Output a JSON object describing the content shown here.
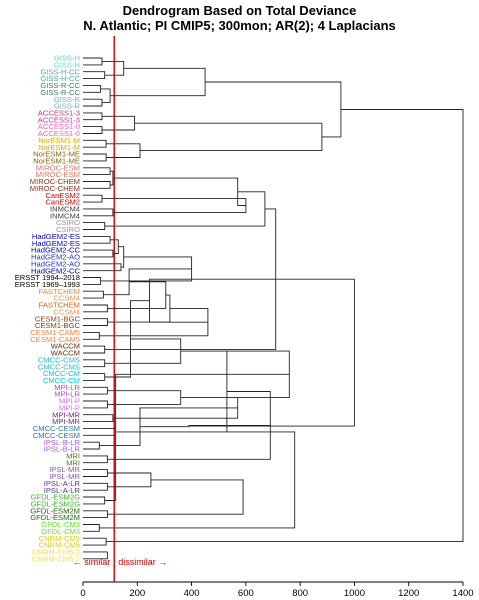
{
  "chart_data": {
    "type": "dendrogram",
    "title": "Dendrogram Based on Total Deviance",
    "subtitle": "N. Atlantic; PI CMIP5; 300mon; AR(2); 4 Laplacians",
    "xlabel": "",
    "ylabel": "",
    "xlim": [
      0,
      1400
    ],
    "xticks": [
      0,
      200,
      400,
      600,
      800,
      1000,
      1200,
      1400
    ],
    "threshold": 115,
    "threshold_color": "#cc0000",
    "annotation_left": "← similar",
    "annotation_right": "dissimilar →",
    "leaves": [
      {
        "label": "GISS-H",
        "color": "#66ddbb"
      },
      {
        "label": "GISS-H",
        "color": "#66ddbb"
      },
      {
        "label": "GISS-H-CC",
        "color": "#55aa99"
      },
      {
        "label": "GISS-H-CC",
        "color": "#55aa99"
      },
      {
        "label": "GISS-R-CC",
        "color": "#447766"
      },
      {
        "label": "GISS-R-CC",
        "color": "#447766"
      },
      {
        "label": "GISS-R",
        "color": "#66bbaa"
      },
      {
        "label": "GISS-R",
        "color": "#66bbaa"
      },
      {
        "label": "ACCESS1-3",
        "color": "#cc3388"
      },
      {
        "label": "ACCESS1-3",
        "color": "#cc3388"
      },
      {
        "label": "ACCESS1-0",
        "color": "#ee66bb"
      },
      {
        "label": "ACCESS1-0",
        "color": "#ee66bb"
      },
      {
        "label": "NorESM1-M",
        "color": "#ddaa00"
      },
      {
        "label": "NorESM1-M",
        "color": "#ddaa00"
      },
      {
        "label": "NorESM1-ME",
        "color": "#886600"
      },
      {
        "label": "NorESM1-ME",
        "color": "#886600"
      },
      {
        "label": "MIROC-ESM",
        "color": "#dd7766"
      },
      {
        "label": "MIROC-ESM",
        "color": "#dd7766"
      },
      {
        "label": "MIROC-CHEM",
        "color": "#883322"
      },
      {
        "label": "MIROC-CHEM",
        "color": "#883322"
      },
      {
        "label": "CanESM2",
        "color": "#dd0000"
      },
      {
        "label": "CanESM2",
        "color": "#dd0000"
      },
      {
        "label": "INMCM4",
        "color": "#444444"
      },
      {
        "label": "INMCM4",
        "color": "#444444"
      },
      {
        "label": "CSIRO",
        "color": "#999999"
      },
      {
        "label": "CSIRO",
        "color": "#999999"
      },
      {
        "label": "HadGEM2-ES",
        "color": "#0000cc"
      },
      {
        "label": "HadGEM2-ES",
        "color": "#0000cc"
      },
      {
        "label": "HadGEM2-CC",
        "color": "#0000aa"
      },
      {
        "label": "HadGEM2-AO",
        "color": "#2233dd"
      },
      {
        "label": "HadGEM2-AO",
        "color": "#2233dd"
      },
      {
        "label": "HadGEM2-CC",
        "color": "#0000aa"
      },
      {
        "label": "ERSST 1994–2018",
        "color": "#000000"
      },
      {
        "label": "ERSST 1969–1993",
        "color": "#000000"
      },
      {
        "label": "FASTCHEM",
        "color": "#ee8833"
      },
      {
        "label": "CCSM4",
        "color": "#ee9955"
      },
      {
        "label": "FASTCHEM",
        "color": "#cc6611"
      },
      {
        "label": "CCSM4",
        "color": "#ee9955"
      },
      {
        "label": "CESM1-BGC",
        "color": "#884411"
      },
      {
        "label": "CESM1-BGC",
        "color": "#884411"
      },
      {
        "label": "CESM1-CAM5",
        "color": "#ee8844"
      },
      {
        "label": "CESM1-CAM5",
        "color": "#ee8844"
      },
      {
        "label": "WACCM",
        "color": "#663311"
      },
      {
        "label": "WACCM",
        "color": "#663311"
      },
      {
        "label": "CMCC-CMS",
        "color": "#22bbcc"
      },
      {
        "label": "CMCC-CMS",
        "color": "#22bbcc"
      },
      {
        "label": "CMCC-CM",
        "color": "#00ccee"
      },
      {
        "label": "CMCC-CM",
        "color": "#00ccee"
      },
      {
        "label": "MPI-LR",
        "color": "#bb44cc"
      },
      {
        "label": "MPI-LR",
        "color": "#bb44cc"
      },
      {
        "label": "MPI-P",
        "color": "#dd66ee"
      },
      {
        "label": "MPI-P",
        "color": "#dd66ee"
      },
      {
        "label": "MPI-MR",
        "color": "#772288"
      },
      {
        "label": "MPI-MR",
        "color": "#772288"
      },
      {
        "label": "CMCC-CESM",
        "color": "#337799"
      },
      {
        "label": "CMCC-CESM",
        "color": "#337799"
      },
      {
        "label": "IPSL-B-LR",
        "color": "#aa55ee"
      },
      {
        "label": "IPSL-B-LR",
        "color": "#aa55ee"
      },
      {
        "label": "MRI",
        "color": "#557722"
      },
      {
        "label": "MRI",
        "color": "#557722"
      },
      {
        "label": "IPSL-MR",
        "color": "#8855bb"
      },
      {
        "label": "IPSL-MR",
        "color": "#8855bb"
      },
      {
        "label": "IPSL-A-LR",
        "color": "#553388"
      },
      {
        "label": "IPSL-A-LR",
        "color": "#553388"
      },
      {
        "label": "GFDL-ESM2G",
        "color": "#33bb22"
      },
      {
        "label": "GFDL-ESM2G",
        "color": "#33bb22"
      },
      {
        "label": "GFDL-ESM2M",
        "color": "#226611"
      },
      {
        "label": "GFDL-ESM2M",
        "color": "#226611"
      },
      {
        "label": "GFDL-CM3",
        "color": "#66dd33"
      },
      {
        "label": "GFDL-CM3",
        "color": "#66dd33"
      },
      {
        "label": "CNRM-CM5",
        "color": "#ddcc22"
      },
      {
        "label": "CNRM-CM5",
        "color": "#ddcc22"
      },
      {
        "label": "CNRM-CM5-2",
        "color": "#ffdd44"
      },
      {
        "label": "CNRM-CM5-2",
        "color": "#ffdd44"
      }
    ],
    "merges": [
      [
        0,
        1,
        70
      ],
      [
        2,
        3,
        80
      ],
      [
        4,
        5,
        65
      ],
      [
        6,
        7,
        70
      ],
      [
        -1,
        -2,
        150
      ],
      [
        -3,
        -4,
        100
      ],
      [
        -5,
        -6,
        450
      ],
      [
        8,
        9,
        70
      ],
      [
        10,
        11,
        70
      ],
      [
        -8,
        -9,
        190
      ],
      [
        12,
        13,
        85
      ],
      [
        14,
        15,
        85
      ],
      [
        -11,
        -12,
        210
      ],
      [
        -10,
        -13,
        880
      ],
      [
        -7,
        -14,
        950
      ],
      [
        16,
        17,
        100
      ],
      [
        18,
        19,
        100
      ],
      [
        -16,
        -17,
        110
      ],
      [
        20,
        21,
        70
      ],
      [
        22,
        23,
        110
      ],
      [
        -19,
        -20,
        600
      ],
      [
        -18,
        -21,
        570
      ],
      [
        24,
        25,
        80
      ],
      [
        -22,
        -23,
        670
      ],
      [
        26,
        27,
        100
      ],
      [
        28,
        29,
        110
      ],
      [
        -25,
        -26,
        130
      ],
      [
        30,
        31,
        140
      ],
      [
        -27,
        -28,
        150
      ],
      [
        32,
        33,
        65
      ],
      [
        -29,
        -30,
        400
      ],
      [
        34,
        35,
        75
      ],
      [
        36,
        37,
        90
      ],
      [
        -31,
        -32,
        170
      ],
      [
        38,
        39,
        90
      ],
      [
        -33,
        -34,
        305
      ],
      [
        40,
        41,
        60
      ],
      [
        -35,
        -36,
        320
      ],
      [
        42,
        43,
        80
      ],
      [
        -37,
        -38,
        460
      ],
      [
        -24,
        -39,
        710
      ],
      [
        44,
        45,
        80
      ],
      [
        46,
        47,
        80
      ],
      [
        -40,
        -41,
        245
      ],
      [
        48,
        49,
        90
      ],
      [
        50,
        51,
        90
      ],
      [
        -43,
        -44,
        175
      ],
      [
        52,
        53,
        110
      ],
      [
        -45,
        -46,
        360
      ],
      [
        -42,
        -47,
        360
      ],
      [
        54,
        55,
        120
      ],
      [
        -48,
        -49,
        570
      ],
      [
        56,
        57,
        60
      ],
      [
        58,
        59,
        90
      ],
      [
        -50,
        -51,
        530
      ],
      [
        60,
        61,
        90
      ],
      [
        62,
        63,
        90
      ],
      [
        -52,
        -53,
        210
      ],
      [
        -54,
        -55,
        690
      ],
      [
        -49,
        -50,
        760
      ],
      [
        64,
        65,
        80
      ],
      [
        66,
        67,
        90
      ],
      [
        -56,
        -57,
        250
      ],
      [
        68,
        69,
        60
      ],
      [
        -58,
        -59,
        390
      ],
      [
        70,
        71,
        85
      ],
      [
        72,
        73,
        90
      ],
      [
        -60,
        -61,
        120
      ],
      [
        -62,
        -63,
        590
      ],
      [
        -51,
        -64,
        780
      ],
      [
        -41,
        -65,
        1000
      ],
      [
        -15,
        -66,
        1400
      ]
    ]
  }
}
